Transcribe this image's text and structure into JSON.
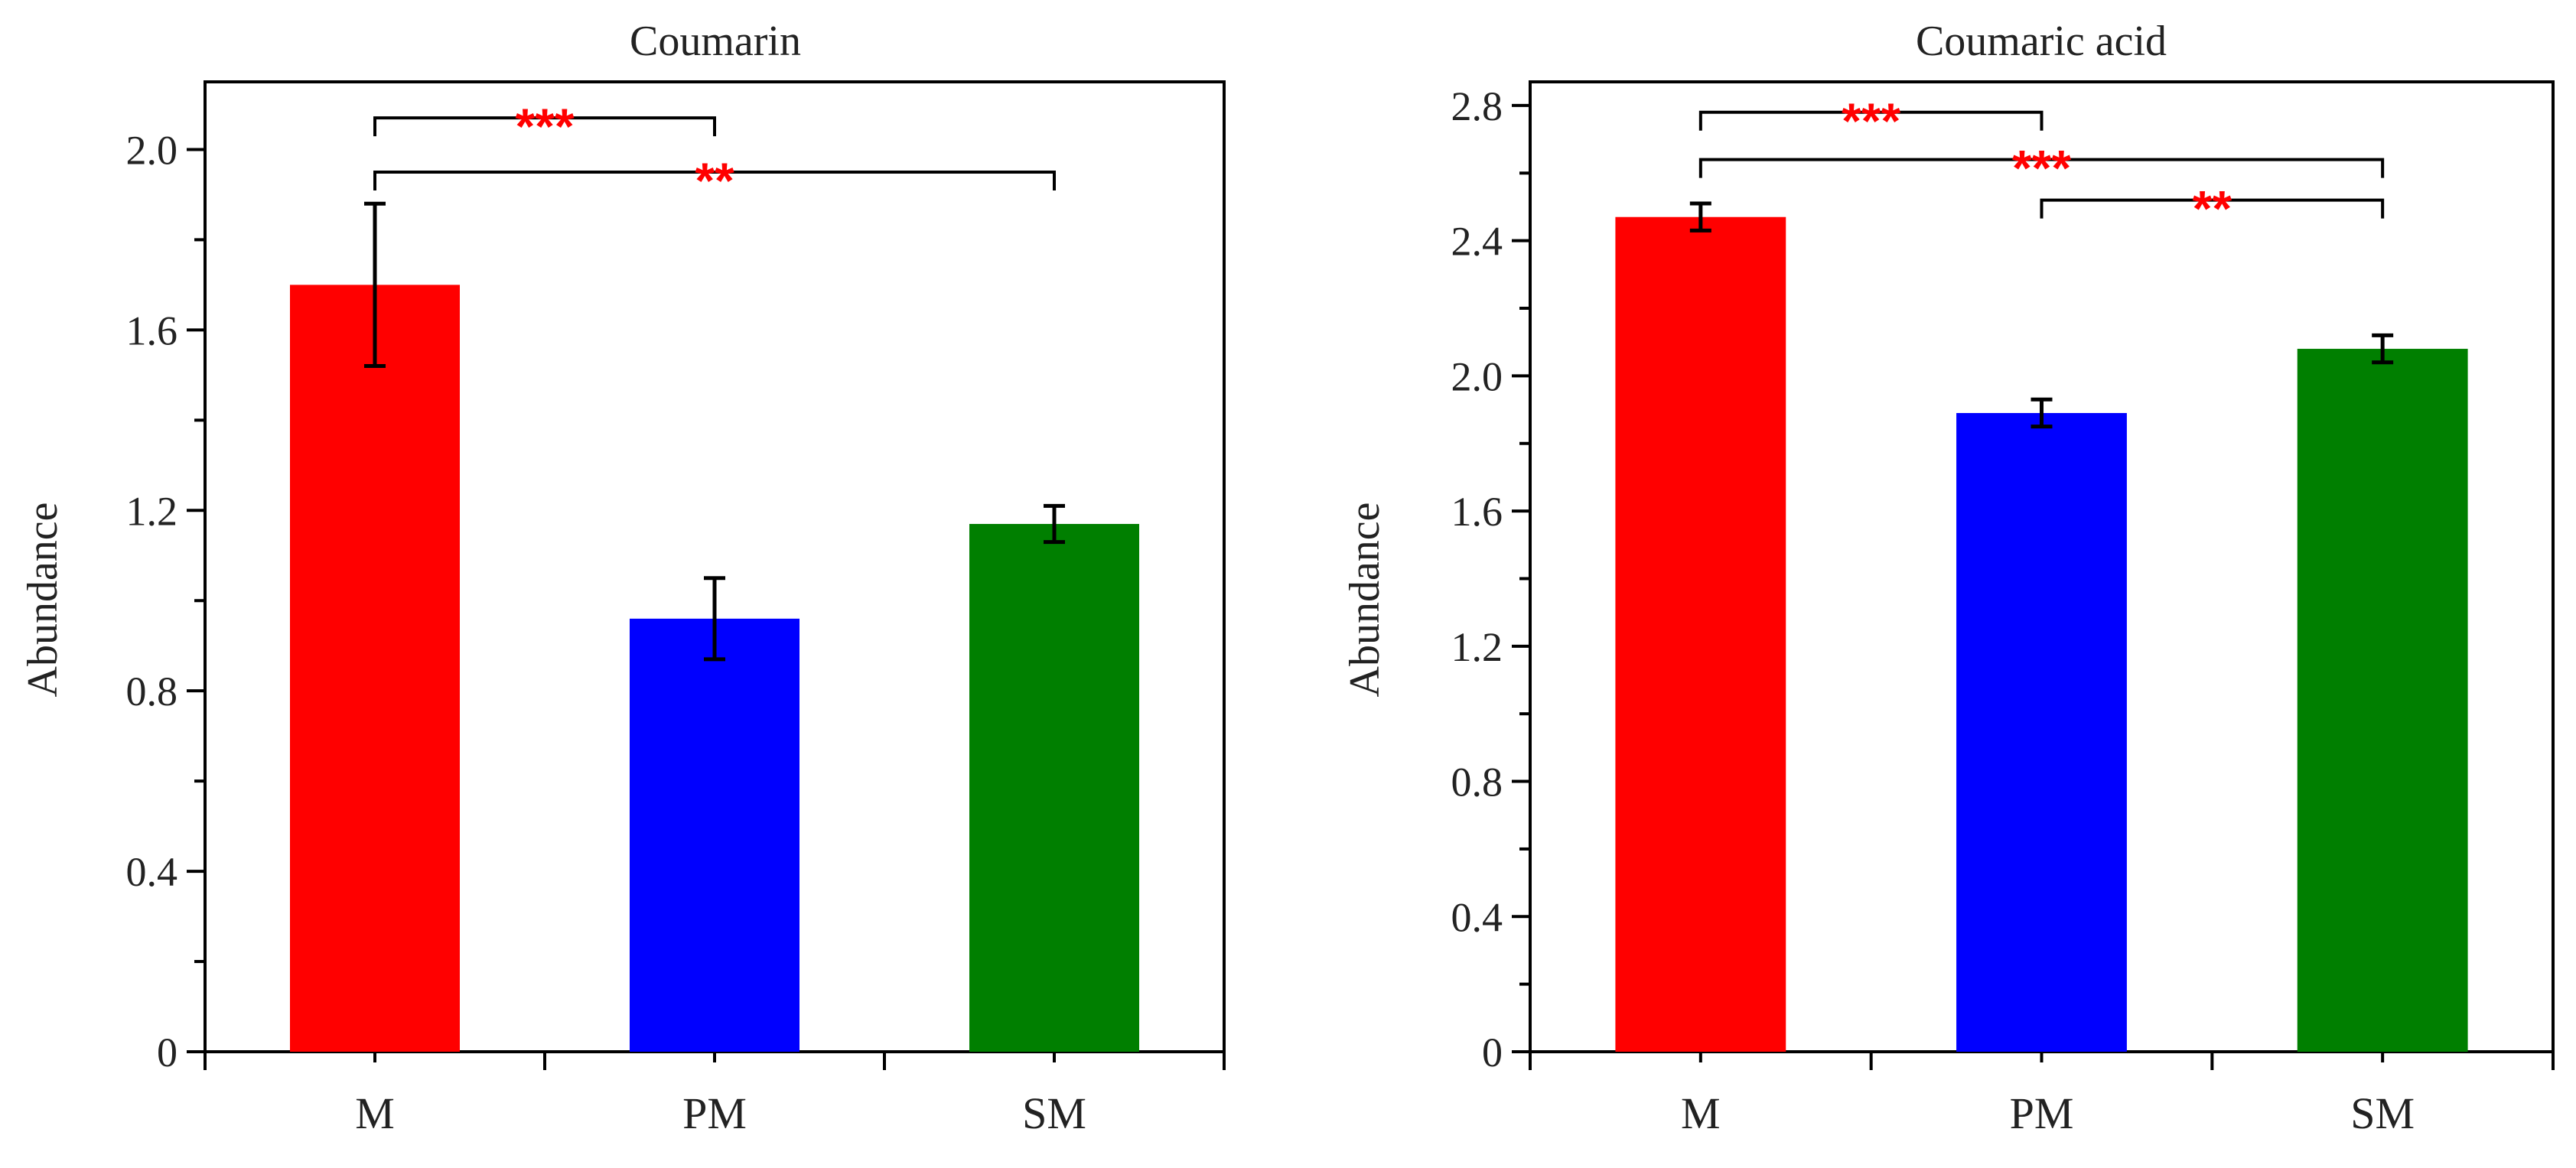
{
  "star_color": "#ff0000",
  "axis_color": "#000000",
  "chart_data": [
    {
      "type": "bar",
      "title": "Coumarin",
      "xlabel": "",
      "ylabel": "Abundance",
      "categories": [
        "M",
        "PM",
        "SM"
      ],
      "values": [
        1.7,
        0.96,
        1.17
      ],
      "errors": [
        0.18,
        0.09,
        0.04
      ],
      "colors": [
        "#ff0000",
        "#0000ff",
        "#007f00"
      ],
      "ylim": [
        0,
        2.15
      ],
      "yticks": [
        0,
        0.4,
        0.8,
        1.2,
        1.6,
        2.0
      ],
      "yticklabels": [
        "0",
        "0.4",
        "0.8",
        "1.2",
        "1.6",
        "2.0"
      ],
      "significance": [
        {
          "from": 0,
          "to": 1,
          "y": 2.07,
          "label": "***"
        },
        {
          "from": 0,
          "to": 2,
          "y": 1.95,
          "label": "**"
        }
      ]
    },
    {
      "type": "bar",
      "title": "Coumaric acid",
      "xlabel": "",
      "ylabel": "Abundance",
      "categories": [
        "M",
        "PM",
        "SM"
      ],
      "values": [
        2.47,
        1.89,
        2.08
      ],
      "errors": [
        0.04,
        0.04,
        0.04
      ],
      "colors": [
        "#ff0000",
        "#0000ff",
        "#007f00"
      ],
      "ylim": [
        0,
        2.87
      ],
      "yticks": [
        0,
        0.4,
        0.8,
        1.2,
        1.6,
        2.0,
        2.4,
        2.8
      ],
      "yticklabels": [
        "0",
        "0.4",
        "0.8",
        "1.2",
        "1.6",
        "2.0",
        "2.4",
        "2.8"
      ],
      "significance": [
        {
          "from": 0,
          "to": 1,
          "y": 2.78,
          "label": "***"
        },
        {
          "from": 0,
          "to": 2,
          "y": 2.64,
          "label": "***"
        },
        {
          "from": 1,
          "to": 2,
          "y": 2.52,
          "label": "**"
        }
      ]
    }
  ]
}
